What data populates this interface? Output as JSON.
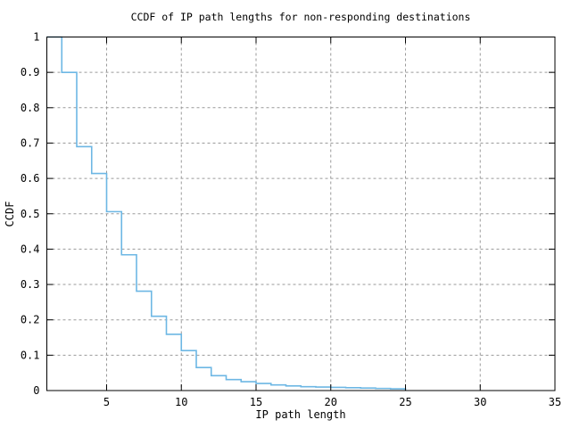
{
  "chart_data": {
    "type": "line",
    "subtype": "ccdf-staircase-step",
    "title": "CCDF of IP path lengths for non-responding destinations",
    "xlabel": "IP path length",
    "ylabel": "CCDF",
    "xlim": [
      1,
      35
    ],
    "ylim": [
      0,
      1
    ],
    "x_ticks": {
      "values": [
        5,
        10,
        15,
        20,
        25,
        30,
        35
      ],
      "labels": [
        "5",
        "10",
        "15",
        "20",
        "25",
        "30",
        "35"
      ]
    },
    "y_ticks": {
      "values": [
        0,
        0.1,
        0.2,
        0.3,
        0.4,
        0.5,
        0.6,
        0.7,
        0.8,
        0.9,
        1
      ],
      "labels": [
        "0",
        "0.1",
        "0.2",
        "0.3",
        "0.4",
        "0.5",
        "0.6",
        "0.7",
        "0.8",
        "0.9",
        "1"
      ]
    },
    "grid": "on-dashed-gray-at-major-ticks",
    "legend": "none",
    "background_color": "#ffffff",
    "border_color": "#000000",
    "grid_color": "#9a9a9a",
    "line_color": "#6db7e4",
    "series": [
      {
        "name": "CCDF of IP path length",
        "note": "step function: value holds on [x, x+1); curve ends at x=25",
        "points": [
          [
            1,
            1.0
          ],
          [
            2,
            0.9
          ],
          [
            3,
            0.69
          ],
          [
            4,
            0.614
          ],
          [
            5,
            0.506
          ],
          [
            6,
            0.384
          ],
          [
            7,
            0.281
          ],
          [
            8,
            0.21
          ],
          [
            9,
            0.159
          ],
          [
            10,
            0.113
          ],
          [
            11,
            0.065
          ],
          [
            12,
            0.042
          ],
          [
            13,
            0.031
          ],
          [
            14,
            0.025
          ],
          [
            15,
            0.02
          ],
          [
            16,
            0.016
          ],
          [
            17,
            0.013
          ],
          [
            18,
            0.011
          ],
          [
            19,
            0.01
          ],
          [
            20,
            0.009
          ],
          [
            21,
            0.008
          ],
          [
            22,
            0.007
          ],
          [
            23,
            0.006
          ],
          [
            24,
            0.005
          ],
          [
            25,
            0
          ]
        ]
      }
    ]
  }
}
